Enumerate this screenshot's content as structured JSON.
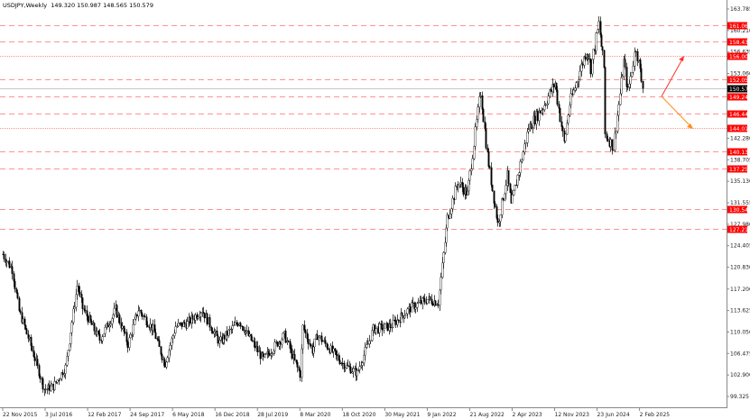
{
  "header": {
    "symbol": "USDJPY,Weekly",
    "ohlc": "149.320 150.987 148.565 150.579"
  },
  "chart_data": {
    "type": "candlestick",
    "title": "USDJPY,Weekly",
    "ylim": [
      99.325,
      163.785
    ],
    "y_ticks": [
      "163.785",
      "160.210",
      "156.635",
      "153.060",
      "142.280",
      "138.705",
      "135.130",
      "131.555",
      "127.980",
      "124.405",
      "120.830",
      "117.200",
      "113.625",
      "110.050",
      "106.475",
      "102.900",
      "99.325"
    ],
    "x_ticks": [
      "22 Nov 2015",
      "3 Jul 2016",
      "12 Feb 2017",
      "24 Sep 2017",
      "6 May 2018",
      "16 Dec 2018",
      "28 Jul 2019",
      "8 Mar 2020",
      "18 Oct 2020",
      "30 May 2021",
      "9 Jan 2022",
      "21 Aug 2022",
      "2 Apr 2023",
      "12 Nov 2023",
      "23 Jun 2024",
      "2 Feb 2025"
    ],
    "x_tick_dates": [
      "2015-11-22",
      "2016-07-03",
      "2017-02-12",
      "2017-09-24",
      "2018-05-06",
      "2018-12-16",
      "2019-07-28",
      "2020-03-08",
      "2020-10-18",
      "2021-05-30",
      "2022-01-09",
      "2022-08-21",
      "2023-04-02",
      "2023-11-12",
      "2024-06-23",
      "2025-02-02"
    ],
    "last_price": {
      "label": "150.579",
      "value": 150.579,
      "color": "#000000"
    },
    "levels": [
      {
        "label": "161.062",
        "value": 161.062,
        "style": "dashed"
      },
      {
        "label": "158.432",
        "value": 158.432,
        "style": "dashed"
      },
      {
        "label": "156.000",
        "value": 156.0,
        "style": "dotted"
      },
      {
        "label": "152.057",
        "value": 152.057,
        "style": "dashed"
      },
      {
        "label": "149.240",
        "value": 149.24,
        "style": "dashed"
      },
      {
        "label": "146.440",
        "value": 146.44,
        "style": "dashed"
      },
      {
        "label": "144.019",
        "value": 144.019,
        "style": "dotted"
      },
      {
        "label": "140.130",
        "value": 140.13,
        "style": "dashed"
      },
      {
        "label": "137.250",
        "value": 137.25,
        "style": "dashed"
      },
      {
        "label": "130.542",
        "value": 130.542,
        "style": "dashed"
      },
      {
        "label": "127.218",
        "value": 127.218,
        "style": "dashed"
      }
    ],
    "level_color": "#ff0000",
    "price_path": [
      [
        "2015-11-22",
        123.0
      ],
      [
        "2016-01-10",
        120.5
      ],
      [
        "2016-02-14",
        113.5
      ],
      [
        "2016-04-10",
        108.5
      ],
      [
        "2016-06-26",
        100.5
      ],
      [
        "2016-08-14",
        101.0
      ],
      [
        "2016-10-16",
        104.2
      ],
      [
        "2016-12-18",
        117.8
      ],
      [
        "2017-01-15",
        114.0
      ],
      [
        "2017-04-16",
        108.8
      ],
      [
        "2017-07-09",
        113.8
      ],
      [
        "2017-09-10",
        108.0
      ],
      [
        "2017-11-05",
        113.8
      ],
      [
        "2018-01-21",
        110.5
      ],
      [
        "2018-03-25",
        104.8
      ],
      [
        "2018-05-20",
        111.0
      ],
      [
        "2018-07-22",
        111.5
      ],
      [
        "2018-10-07",
        113.8
      ],
      [
        "2019-01-06",
        108.3
      ],
      [
        "2019-04-21",
        111.9
      ],
      [
        "2019-08-25",
        105.5
      ],
      [
        "2019-12-15",
        109.5
      ],
      [
        "2020-03-08",
        103.0
      ],
      [
        "2020-03-22",
        110.9
      ],
      [
        "2020-05-10",
        107.0
      ],
      [
        "2020-06-07",
        109.5
      ],
      [
        "2020-10-25",
        104.6
      ],
      [
        "2021-01-03",
        103.2
      ],
      [
        "2021-03-28",
        110.5
      ],
      [
        "2021-06-27",
        111.0
      ],
      [
        "2021-10-17",
        114.2
      ],
      [
        "2022-01-09",
        115.5
      ],
      [
        "2022-03-06",
        115.0
      ],
      [
        "2022-04-24",
        129.0
      ],
      [
        "2022-06-19",
        135.0
      ],
      [
        "2022-08-07",
        133.0
      ],
      [
        "2022-10-16",
        150.0
      ],
      [
        "2022-11-20",
        139.5
      ],
      [
        "2023-01-15",
        128.0
      ],
      [
        "2023-03-05",
        136.0
      ],
      [
        "2023-03-26",
        131.0
      ],
      [
        "2023-06-25",
        144.0
      ],
      [
        "2023-09-10",
        147.5
      ],
      [
        "2023-11-12",
        151.5
      ],
      [
        "2023-12-31",
        141.5
      ],
      [
        "2024-01-28",
        148.0
      ],
      [
        "2024-04-28",
        157.0
      ],
      [
        "2024-05-19",
        154.0
      ],
      [
        "2024-06-30",
        161.3
      ],
      [
        "2024-07-28",
        154.0
      ],
      [
        "2024-08-04",
        143.0
      ],
      [
        "2024-09-15",
        140.8
      ],
      [
        "2024-11-10",
        155.0
      ],
      [
        "2024-12-01",
        150.0
      ],
      [
        "2025-01-12",
        157.5
      ],
      [
        "2025-02-16",
        150.579
      ]
    ],
    "grid": false
  }
}
